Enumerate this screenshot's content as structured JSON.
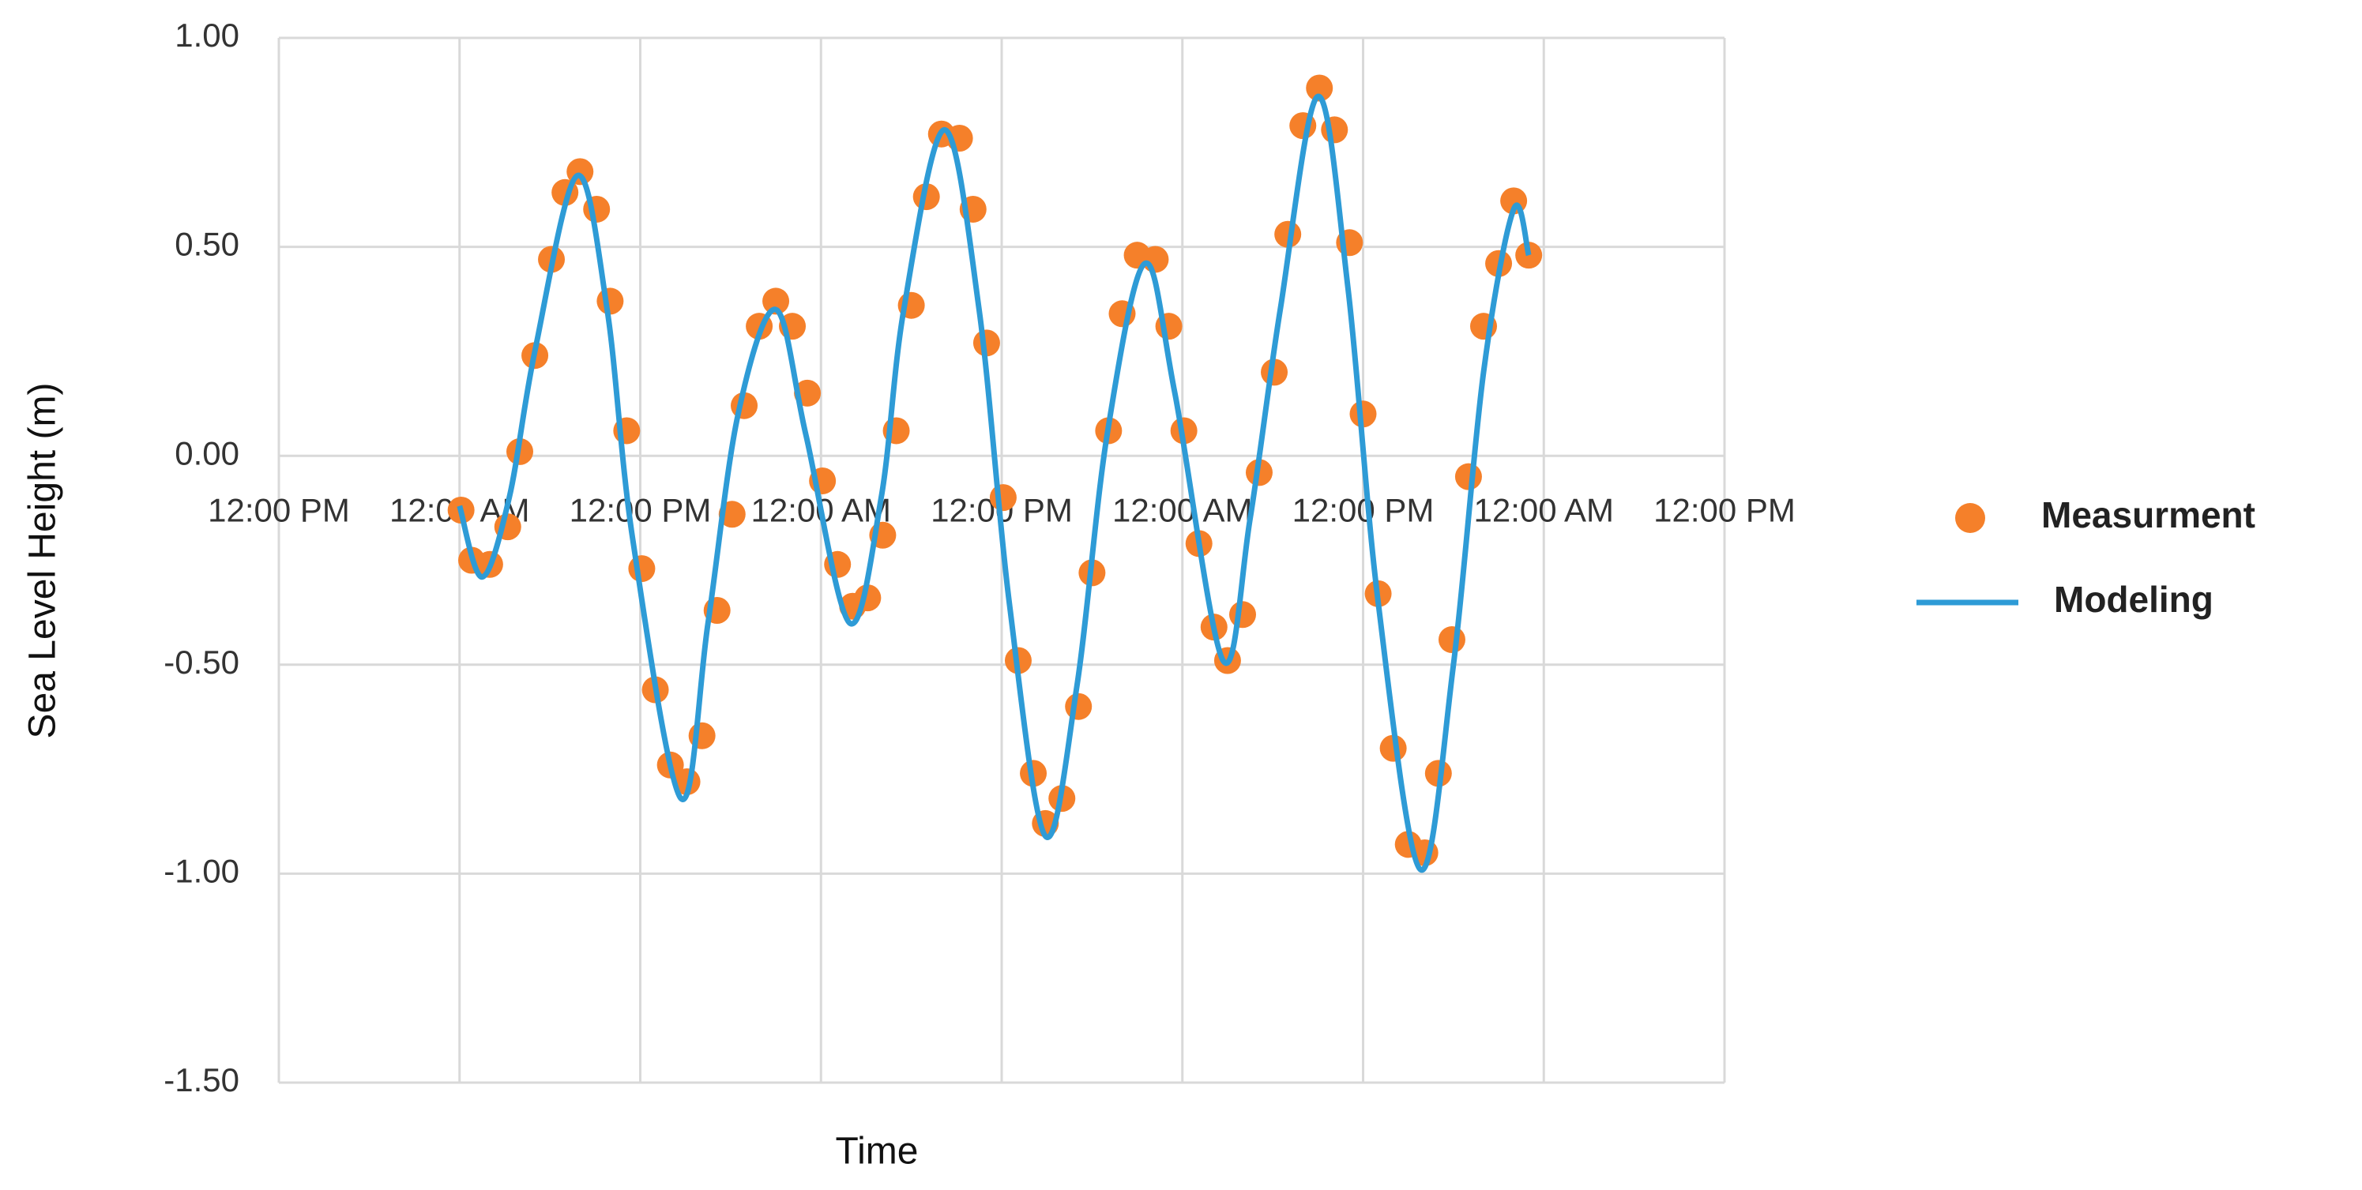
{
  "chart_data": {
    "type": "scatter",
    "x_label": "Time",
    "y_label": "Sea Level Height (m)",
    "xlim": [
      0,
      96
    ],
    "xticks": [
      {
        "value": 0,
        "label": "12:00 PM"
      },
      {
        "value": 12,
        "label": "12:00 AM"
      },
      {
        "value": 24,
        "label": "12:00 PM"
      },
      {
        "value": 36,
        "label": "12:00 AM"
      },
      {
        "value": 48,
        "label": "12:00 PM"
      },
      {
        "value": 60,
        "label": "12:00 AM"
      },
      {
        "value": 72,
        "label": "12:00 PM"
      },
      {
        "value": 84,
        "label": "12:00 AM"
      },
      {
        "value": 96,
        "label": "12:00 PM"
      }
    ],
    "ylim": [
      -1.5,
      1.0
    ],
    "yticks": [
      {
        "value": -1.5,
        "label": "-1.50"
      },
      {
        "value": -1.0,
        "label": "-1.00"
      },
      {
        "value": -0.5,
        "label": "-0.50"
      },
      {
        "value": 0,
        "label": "0.00"
      },
      {
        "value": 0.5,
        "label": "0.50"
      },
      {
        "value": 1.0,
        "label": "1.00"
      }
    ],
    "grid": true,
    "legend": "right",
    "series": [
      {
        "name": "Measurment",
        "type": "scatter",
        "color": "#f5802a",
        "x": [
          12.1,
          12.8,
          14.0,
          15.2,
          16.0,
          17.0,
          18.1,
          19.0,
          20.0,
          21.1,
          22.0,
          23.1,
          24.1,
          25.0,
          26.0,
          27.1,
          28.1,
          29.1,
          30.1,
          30.9,
          31.9,
          33.0,
          34.1,
          35.1,
          36.1,
          37.1,
          38.1,
          39.1,
          40.1,
          41.0,
          42.0,
          43.0,
          44.0,
          45.2,
          46.1,
          47.0,
          48.1,
          49.1,
          50.1,
          50.9,
          52.0,
          53.1,
          54.0,
          55.1,
          56.0,
          57.0,
          58.2,
          59.1,
          60.1,
          61.1,
          62.1,
          63.0,
          64.0,
          65.1,
          66.1,
          67.0,
          68.0,
          69.1,
          70.1,
          71.1,
          72.0,
          73.0,
          74.0,
          75.0,
          76.1,
          77.0,
          77.9,
          79.0,
          80.0,
          81.0,
          82.0,
          83.0
        ],
        "values": [
          -0.13,
          -0.25,
          -0.26,
          -0.17,
          0.01,
          0.24,
          0.47,
          0.63,
          0.68,
          0.59,
          0.37,
          0.06,
          -0.27,
          -0.56,
          -0.74,
          -0.78,
          -0.67,
          -0.37,
          -0.14,
          0.12,
          0.31,
          0.37,
          0.31,
          0.15,
          -0.06,
          -0.26,
          -0.36,
          -0.34,
          -0.19,
          0.06,
          0.36,
          0.62,
          0.77,
          0.76,
          0.59,
          0.27,
          -0.1,
          -0.49,
          -0.76,
          -0.88,
          -0.82,
          -0.6,
          -0.28,
          0.06,
          0.34,
          0.48,
          0.47,
          0.31,
          0.06,
          -0.21,
          -0.41,
          -0.49,
          -0.38,
          -0.04,
          0.2,
          0.53,
          0.79,
          0.88,
          0.78,
          0.51,
          0.1,
          -0.33,
          -0.7,
          -0.93,
          -0.95,
          -0.76,
          -0.44,
          -0.05,
          0.31,
          0.46,
          0.61,
          0.48
        ]
      },
      {
        "name": "Modeling",
        "type": "line",
        "color": "#2e9bd6",
        "x": [
          12.0,
          13.5,
          15.3,
          17.0,
          19.8,
          21.8,
          23.5,
          26.7,
          28.5,
          30.5,
          33.0,
          35.0,
          37.9,
          40.0,
          41.5,
          44.2,
          46.5,
          48.5,
          50.9,
          53.0,
          55.0,
          57.5,
          59.5,
          62.7,
          64.5,
          66.5,
          69.0,
          71.0,
          73.0,
          75.8,
          78.0,
          80.0,
          82.0,
          83.0
        ],
        "values": [
          -0.12,
          -0.29,
          -0.1,
          0.25,
          0.67,
          0.35,
          -0.2,
          -0.82,
          -0.4,
          0.1,
          0.35,
          0.05,
          -0.4,
          -0.1,
          0.35,
          0.78,
          0.35,
          -0.35,
          -0.91,
          -0.55,
          0.05,
          0.46,
          0.15,
          -0.49,
          -0.15,
          0.35,
          0.86,
          0.4,
          -0.35,
          -0.99,
          -0.5,
          0.2,
          0.59,
          0.48
        ]
      }
    ]
  }
}
